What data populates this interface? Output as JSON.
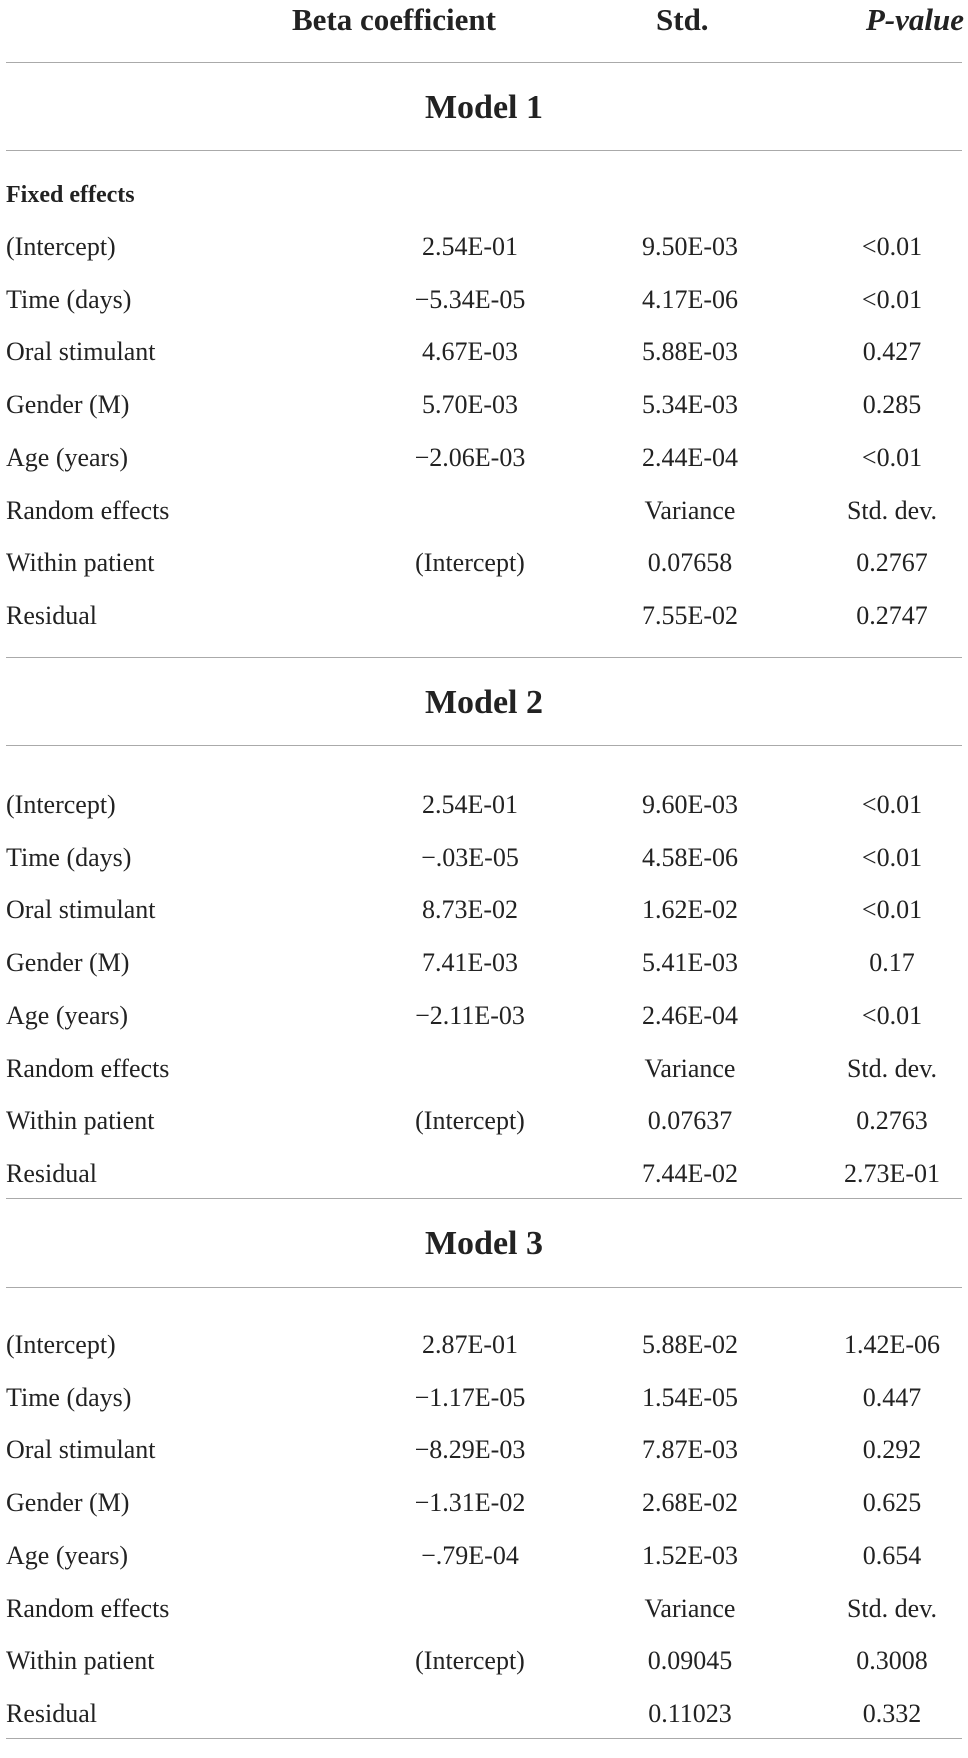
{
  "header": {
    "col_beta": "Beta coefficient",
    "col_std": "Std.",
    "col_p": "P-value"
  },
  "models": [
    {
      "title": "Model 1",
      "subheading": "Fixed effects",
      "rows": [
        [
          "(Intercept)",
          "2.54E-01",
          "9.50E-03",
          "<0.01"
        ],
        [
          "Time (days)",
          "−5.34E-05",
          "4.17E-06",
          "<0.01"
        ],
        [
          "Oral stimulant",
          "4.67E-03",
          "5.88E-03",
          "0.427"
        ],
        [
          "Gender (M)",
          "5.70E-03",
          "5.34E-03",
          "0.285"
        ],
        [
          "Age (years)",
          "−2.06E-03",
          "2.44E-04",
          "<0.01"
        ],
        [
          "Random effects",
          "",
          "Variance",
          "Std. dev."
        ],
        [
          "Within patient",
          "(Intercept)",
          "0.07658",
          "0.2767"
        ],
        [
          "Residual",
          "",
          "7.55E-02",
          "0.2747"
        ]
      ]
    },
    {
      "title": "Model 2",
      "rows": [
        [
          "(Intercept)",
          "2.54E-01",
          "9.60E-03",
          "<0.01"
        ],
        [
          "Time (days)",
          "−.03E-05",
          "4.58E-06",
          "<0.01"
        ],
        [
          "Oral stimulant",
          "8.73E-02",
          "1.62E-02",
          "<0.01"
        ],
        [
          "Gender (M)",
          "7.41E-03",
          "5.41E-03",
          "0.17"
        ],
        [
          "Age (years)",
          "−2.11E-03",
          "2.46E-04",
          "<0.01"
        ],
        [
          "Random effects",
          "",
          "Variance",
          "Std. dev."
        ],
        [
          "Within patient",
          "(Intercept)",
          "0.07637",
          "0.2763"
        ],
        [
          "Residual",
          "",
          "7.44E-02",
          "2.73E-01"
        ]
      ]
    },
    {
      "title": "Model 3",
      "rows": [
        [
          "(Intercept)",
          "2.87E-01",
          "5.88E-02",
          "1.42E-06"
        ],
        [
          "Time (days)",
          "−1.17E-05",
          "1.54E-05",
          "0.447"
        ],
        [
          "Oral stimulant",
          "−8.29E-03",
          "7.87E-03",
          "0.292"
        ],
        [
          "Gender (M)",
          "−1.31E-02",
          "2.68E-02",
          "0.625"
        ],
        [
          "Age (years)",
          "−.79E-04",
          "1.52E-03",
          "0.654"
        ],
        [
          "Random effects",
          "",
          "Variance",
          "Std. dev."
        ],
        [
          "Within patient",
          "(Intercept)",
          "0.09045",
          "0.3008"
        ],
        [
          "Residual",
          "",
          "0.11023",
          "0.332"
        ]
      ]
    }
  ]
}
